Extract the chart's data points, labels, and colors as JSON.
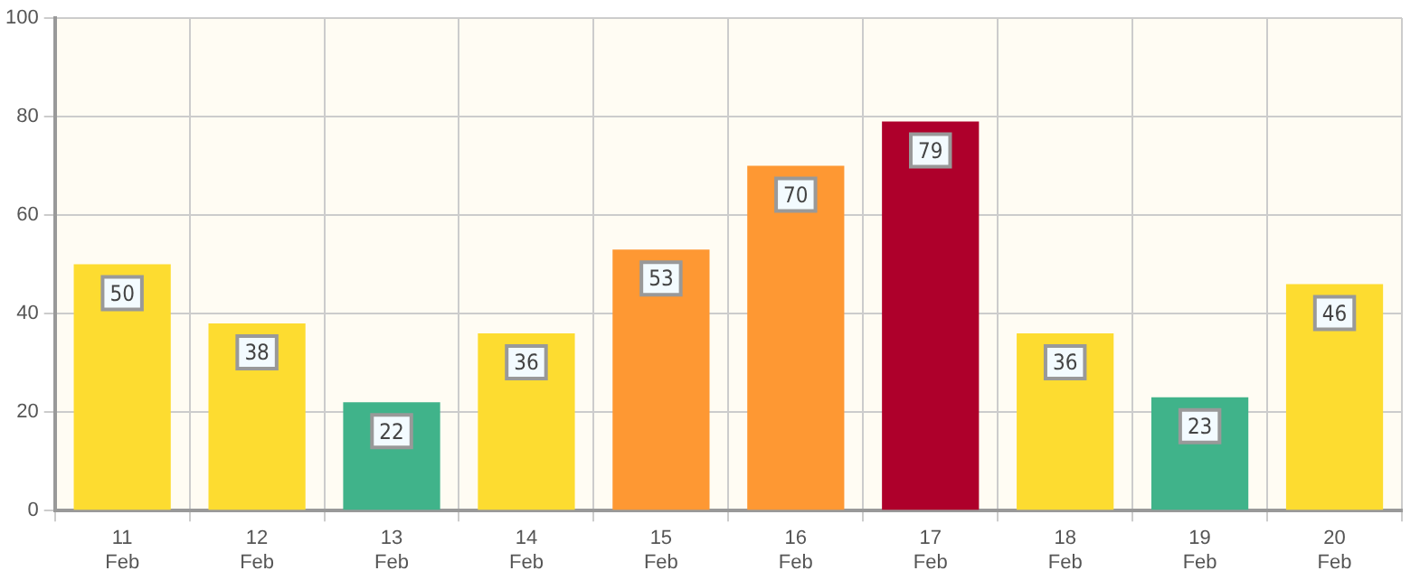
{
  "chart_data": {
    "type": "bar",
    "categories": [
      "11 Feb",
      "12 Feb",
      "13 Feb",
      "14 Feb",
      "15 Feb",
      "16 Feb",
      "17 Feb",
      "18 Feb",
      "19 Feb",
      "20 Feb"
    ],
    "values": [
      50,
      38,
      22,
      36,
      53,
      70,
      79,
      36,
      23,
      46
    ],
    "colors": [
      "#fddc30",
      "#fddc30",
      "#40b38a",
      "#fddc30",
      "#fe9833",
      "#fe9833",
      "#ae002b",
      "#fddc30",
      "#40b38a",
      "#fddc30"
    ],
    "ylim": [
      0,
      100
    ],
    "yticks": [
      0,
      20,
      40,
      60,
      80,
      100
    ],
    "grid": true,
    "data_labels": true
  }
}
